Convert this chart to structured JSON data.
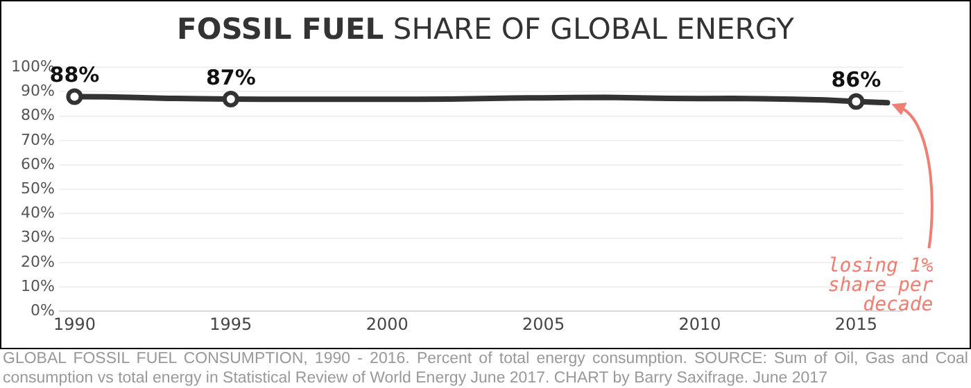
{
  "chart_data": {
    "type": "line",
    "title": "FOSSIL FUEL SHARE OF GLOBAL ENERGY",
    "x": [
      1990,
      1991,
      1992,
      1993,
      1994,
      1995,
      1996,
      1997,
      1998,
      1999,
      2000,
      2001,
      2002,
      2003,
      2004,
      2005,
      2006,
      2007,
      2008,
      2009,
      2010,
      2011,
      2012,
      2013,
      2014,
      2015,
      2016
    ],
    "series": [
      {
        "color": "#333333",
        "values": [
          88,
          87.9,
          87.6,
          87.3,
          87.1,
          87,
          86.9,
          86.9,
          86.9,
          86.9,
          86.9,
          86.9,
          87,
          87.2,
          87.4,
          87.5,
          87.6,
          87.7,
          87.5,
          87.3,
          87.2,
          87.3,
          87.1,
          86.9,
          86.6,
          86,
          85.5
        ],
        "value_labels": [
          "88%",
          null,
          null,
          null,
          null,
          "87%",
          null,
          null,
          null,
          null,
          null,
          null,
          null,
          null,
          null,
          null,
          null,
          null,
          null,
          null,
          null,
          null,
          null,
          null,
          null,
          "86%",
          null
        ]
      }
    ],
    "xlim": [
      1989.5,
      2016.5
    ],
    "xticks": [
      1990,
      1995,
      2000,
      2005,
      2010,
      2015
    ],
    "ylim": [
      0,
      100
    ],
    "yticks": [
      {
        "value": 0,
        "label": "0%"
      },
      {
        "value": 10,
        "label": "10%"
      },
      {
        "value": 20,
        "label": "20%"
      },
      {
        "value": 30,
        "label": "30%"
      },
      {
        "value": 40,
        "label": "40%"
      },
      {
        "value": 50,
        "label": "50%"
      },
      {
        "value": 60,
        "label": "60%"
      },
      {
        "value": 70,
        "label": "70%"
      },
      {
        "value": 80,
        "label": "80%"
      },
      {
        "value": 90,
        "label": "90%"
      },
      {
        "value": 100,
        "label": "100%"
      }
    ],
    "grid": "y",
    "line_style": "solid",
    "legend": false,
    "annotations": [
      {
        "text": "losing 1% share per decade",
        "x": 2016,
        "y": 85.5
      },
      "GLOBAL FOSSIL FUEL CONSUMPTION, 1990 - 2016. Percent of total energy consumption. SOURCE: Sum of Oil, Gas and Coal consumption vs total energy in Statistical Review of World Energy June 2017. CHART by Barry Saxifrage. June 2017"
    ]
  }
}
